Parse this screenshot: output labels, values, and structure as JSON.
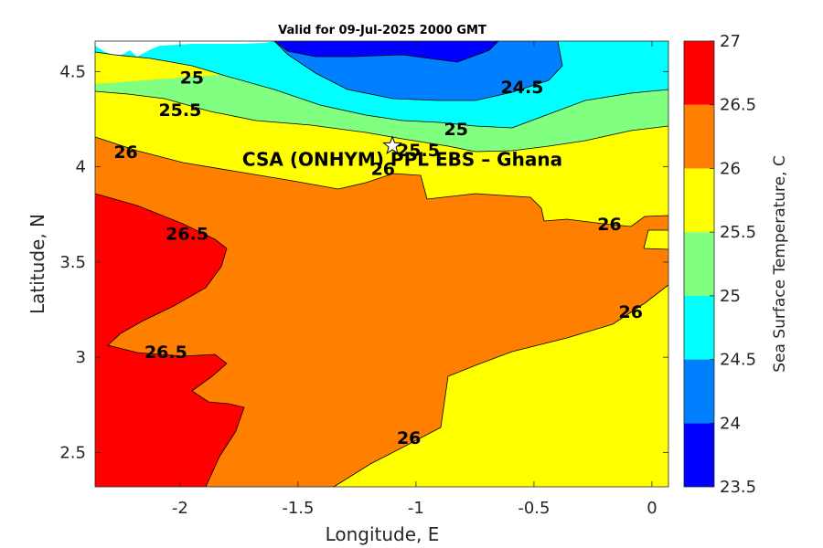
{
  "chart_data": {
    "type": "contour",
    "title": "Valid for 09-Jul-2025 2000 GMT",
    "xlabel": "Longitude, E",
    "ylabel": "Latitude, N",
    "xlim": [
      -2.36,
      0.07
    ],
    "ylim": [
      2.32,
      4.66
    ],
    "xticks": [
      -2,
      -1.5,
      -1,
      -0.5,
      0
    ],
    "xtick_labels": [
      "-2",
      "-1.5",
      "-1",
      "-0.5",
      "0"
    ],
    "yticks": [
      2.5,
      3,
      3.5,
      4,
      4.5
    ],
    "ytick_labels": [
      "2.5",
      "3",
      "3.5",
      "4",
      "4.5"
    ],
    "colorbar": {
      "label": "Sea Surface Temperature, C",
      "levels": [
        23.5,
        24,
        24.5,
        25,
        25.5,
        26,
        26.5,
        27
      ],
      "tick_labels": [
        "23.5",
        "24",
        "24.5",
        "25",
        "25.5",
        "26",
        "26.5",
        "27"
      ],
      "colors": [
        "#0000ff",
        "#0080ff",
        "#00ffff",
        "#80ff80",
        "#ffff00",
        "#ff8000",
        "#ff0000"
      ]
    },
    "contour_labels": [
      {
        "text": "25",
        "lon": -1.95,
        "lat": 4.47
      },
      {
        "text": "25.5",
        "lon": -2.0,
        "lat": 4.3
      },
      {
        "text": "26",
        "lon": -2.23,
        "lat": 4.08
      },
      {
        "text": "26.5",
        "lon": -1.97,
        "lat": 3.65
      },
      {
        "text": "26.5",
        "lon": -2.06,
        "lat": 3.03
      },
      {
        "text": "24.5",
        "lon": -0.55,
        "lat": 4.42
      },
      {
        "text": "25",
        "lon": -0.83,
        "lat": 4.2
      },
      {
        "text": "25.5",
        "lon": -0.99,
        "lat": 4.09
      },
      {
        "text": "26",
        "lon": -1.14,
        "lat": 3.99
      },
      {
        "text": "26",
        "lon": -0.18,
        "lat": 3.7
      },
      {
        "text": "26",
        "lon": -0.09,
        "lat": 3.24
      },
      {
        "text": "26",
        "lon": -1.03,
        "lat": 2.58
      }
    ],
    "site": {
      "label": "CSA (ONHYM) PPL EBS  – Ghana",
      "lon": -1.1,
      "lat": 4.11,
      "marker": "star"
    }
  }
}
